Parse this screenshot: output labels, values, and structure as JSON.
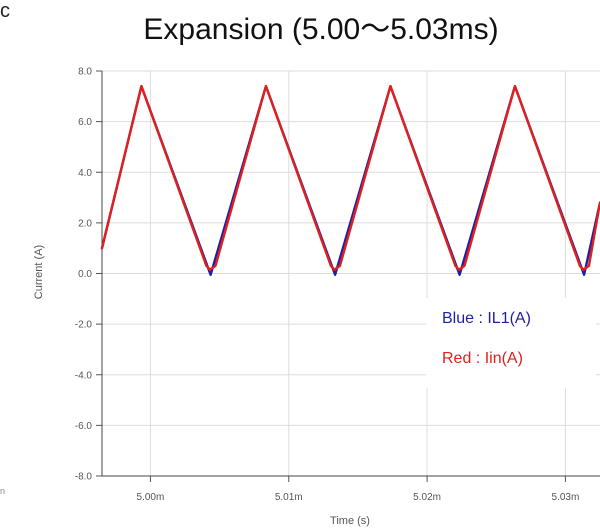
{
  "figure": {
    "corner_label": "c",
    "bottom_left_mark": "n"
  },
  "chart_data": {
    "type": "line",
    "title": "Expansion (5.00～5.03ms)",
    "xlabel": "Time (s)",
    "ylabel": "Current (A)",
    "xlim": [
      4.9965,
      5.0325
    ],
    "ylim": [
      -8.0,
      8.0
    ],
    "x_ticks": [
      5.0,
      5.01,
      5.02,
      5.03
    ],
    "x_tick_labels": [
      "5.00m",
      "5.01m",
      "5.02m",
      "5.03m"
    ],
    "y_ticks": [
      8.0,
      6.0,
      4.0,
      2.0,
      0.0,
      -2.0,
      -4.0,
      -6.0,
      -8.0
    ],
    "y_tick_labels": [
      "8.0",
      "6.0",
      "4.0",
      "2.0",
      "0.0",
      "-2.0",
      "-4.0",
      "-6.0",
      "-8.0"
    ],
    "grid": true,
    "legend_placement": "lower-right",
    "legend": [
      "Blue : IL1(A)",
      "Red : Iin(A)"
    ],
    "series": [
      {
        "color": "#1f1fa8",
        "x": [
          4.9965,
          4.99935,
          5.00435,
          5.00835,
          5.01335,
          5.01735,
          5.02235,
          5.02635,
          5.03135,
          5.0325
        ],
        "y": [
          1.0,
          7.4,
          -0.05,
          7.4,
          -0.05,
          7.4,
          -0.05,
          7.4,
          -0.05,
          2.8
        ]
      },
      {
        "color": "#e0201c",
        "x": [
          4.9965,
          4.99935,
          5.00405,
          5.0043,
          5.0047,
          5.00835,
          5.01305,
          5.0133,
          5.0137,
          5.01735,
          5.02205,
          5.0223,
          5.0227,
          5.02635,
          5.03105,
          5.0313,
          5.0317,
          5.0325
        ],
        "y": [
          1.0,
          7.4,
          0.3,
          0.15,
          0.3,
          7.4,
          0.3,
          0.15,
          0.3,
          7.4,
          0.3,
          0.15,
          0.3,
          7.4,
          0.3,
          0.15,
          0.3,
          2.8
        ]
      }
    ]
  }
}
